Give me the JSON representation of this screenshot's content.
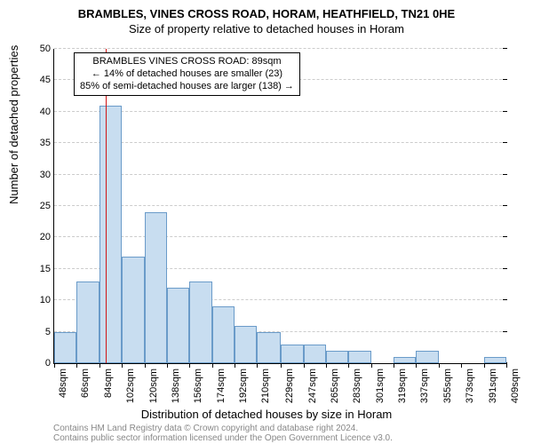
{
  "titles": {
    "line1": "BRAMBLES, VINES CROSS ROAD, HORAM, HEATHFIELD, TN21 0HE",
    "line2": "Size of property relative to detached houses in Horam"
  },
  "font": {
    "title1_size": 13,
    "title2_size": 13,
    "axis_label_size": 13,
    "tick_size": 11,
    "annotation_size": 11,
    "footer_size": 10
  },
  "chart": {
    "type": "histogram",
    "background_color": "#ffffff",
    "grid_color": "#cccccc",
    "bar_fill": "#c8ddf0",
    "bar_stroke": "#6a9bc9",
    "ref_line_color": "#d01515",
    "ref_line_x": 89,
    "ylim": [
      0,
      50
    ],
    "ytick_step": 5,
    "x_ticks": [
      48,
      66,
      84,
      102,
      120,
      138,
      156,
      174,
      192,
      210,
      229,
      247,
      265,
      283,
      301,
      319,
      337,
      355,
      373,
      391,
      409
    ],
    "x_tick_unit": "sqm",
    "y_label": "Number of detached properties",
    "x_label": "Distribution of detached houses by size in Horam",
    "bars": [
      {
        "x0": 48,
        "x1": 66,
        "y": 5
      },
      {
        "x0": 66,
        "x1": 84,
        "y": 13
      },
      {
        "x0": 84,
        "x1": 102,
        "y": 41
      },
      {
        "x0": 102,
        "x1": 120,
        "y": 17
      },
      {
        "x0": 120,
        "x1": 138,
        "y": 24
      },
      {
        "x0": 138,
        "x1": 156,
        "y": 12
      },
      {
        "x0": 156,
        "x1": 174,
        "y": 13
      },
      {
        "x0": 174,
        "x1": 192,
        "y": 9
      },
      {
        "x0": 192,
        "x1": 210,
        "y": 6
      },
      {
        "x0": 210,
        "x1": 229,
        "y": 5
      },
      {
        "x0": 229,
        "x1": 247,
        "y": 3
      },
      {
        "x0": 247,
        "x1": 265,
        "y": 3
      },
      {
        "x0": 265,
        "x1": 283,
        "y": 2
      },
      {
        "x0": 283,
        "x1": 301,
        "y": 2
      },
      {
        "x0": 301,
        "x1": 319,
        "y": 0
      },
      {
        "x0": 319,
        "x1": 337,
        "y": 1
      },
      {
        "x0": 337,
        "x1": 355,
        "y": 2
      },
      {
        "x0": 355,
        "x1": 373,
        "y": 0
      },
      {
        "x0": 373,
        "x1": 391,
        "y": 0
      },
      {
        "x0": 391,
        "x1": 409,
        "y": 1
      }
    ]
  },
  "annotation": {
    "line1": "BRAMBLES VINES CROSS ROAD: 89sqm",
    "line2": "← 14% of detached houses are smaller (23)",
    "line3": "85% of semi-detached houses are larger (138) →"
  },
  "footer": {
    "line1": "Contains HM Land Registry data © Crown copyright and database right 2024.",
    "line2": "Contains public sector information licensed under the Open Government Licence v3.0."
  }
}
